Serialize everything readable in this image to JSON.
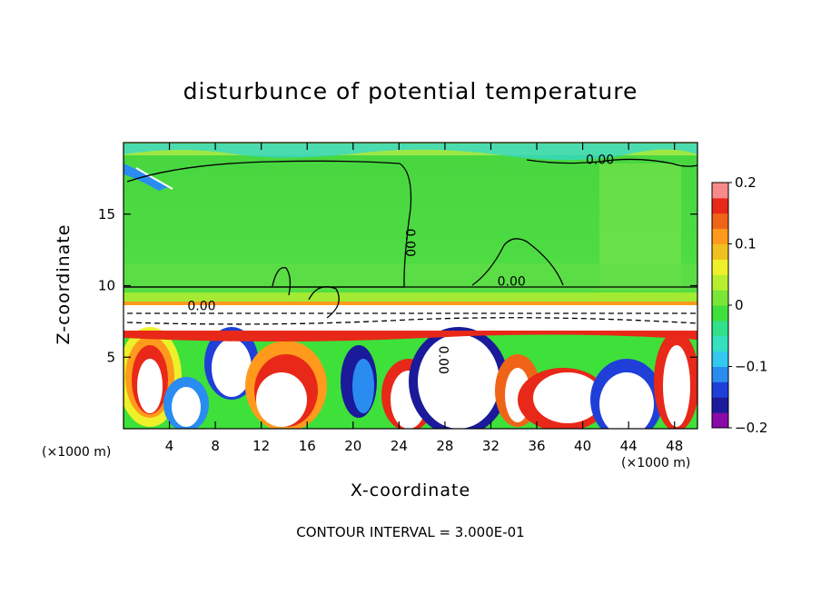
{
  "chart_data": {
    "type": "heatmap",
    "title": "disturbunce of potential temperature",
    "xlabel": "X-coordinate",
    "ylabel": "Z-coordinate",
    "x_scale_label": "(×1000 m)",
    "x_scale_label_right": "(×1000 m)",
    "footer": "CONTOUR INTERVAL = 3.000E-01",
    "xlim": [
      0,
      50
    ],
    "ylim": [
      0,
      20
    ],
    "x_ticks": [
      4,
      8,
      12,
      16,
      20,
      24,
      28,
      32,
      36,
      40,
      44,
      48
    ],
    "y_ticks": [
      5,
      10,
      15
    ],
    "colorbar": {
      "range": [
        -0.2,
        0.2
      ],
      "tick_values": [
        0.2,
        0.1,
        0,
        -0.1,
        -0.2
      ],
      "tick_labels": [
        "0.2",
        "0.1",
        "0",
        "−0.1",
        "−0.2"
      ],
      "colors": [
        "#8a0aa8",
        "#1a1a9a",
        "#1f3fd8",
        "#2a8cf0",
        "#32c8f0",
        "#34e0c0",
        "#30e08a",
        "#3ee03a",
        "#7ae636",
        "#b8ee30",
        "#eef02a",
        "#f0c020",
        "#ff9a1c",
        "#f06418",
        "#e82818",
        "#f88a8a"
      ]
    },
    "contour_labels": [
      {
        "text": "0.00",
        "x": 41.5,
        "z": 18.5
      },
      {
        "text": "0.00",
        "x": 24.6,
        "z": 13.0
      },
      {
        "text": "0.00",
        "x": 33.8,
        "z": 10.0
      },
      {
        "text": "0.00",
        "x": 6.8,
        "z": 8.3
      },
      {
        "text": "0.00",
        "x": 27.5,
        "z": 4.8
      }
    ]
  },
  "colors": {
    "green": "#3ed83c",
    "light_green": "#6ee248",
    "band": "#8fe840",
    "white": "#ffffff"
  }
}
